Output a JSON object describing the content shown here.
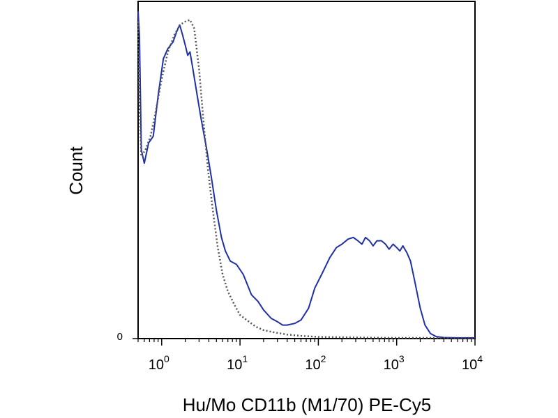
{
  "chart_data": {
    "type": "line",
    "xlabel": "Hu/Mo CD11b (M1/70) PE-Cy5",
    "ylabel": "Count",
    "x_scale": "log",
    "xlim": [
      0.5,
      10000
    ],
    "x_ticks": [
      {
        "value": 1,
        "base": "10",
        "exp": "0"
      },
      {
        "value": 10,
        "base": "10",
        "exp": "1"
      },
      {
        "value": 100,
        "base": "10",
        "exp": "2"
      },
      {
        "value": 1000,
        "base": "10",
        "exp": "3"
      },
      {
        "value": 10000,
        "base": "10",
        "exp": "4"
      }
    ],
    "y_ticks": [
      {
        "value": 0,
        "label": "0"
      }
    ],
    "ylim": [
      0,
      100
    ],
    "grid": false,
    "series": [
      {
        "style": "solid",
        "color": "#1f2fa8",
        "points": [
          [
            0.5,
            97
          ],
          [
            0.52,
            90
          ],
          [
            0.55,
            56
          ],
          [
            0.6,
            52
          ],
          [
            0.68,
            58
          ],
          [
            0.78,
            60
          ],
          [
            0.9,
            72
          ],
          [
            1.05,
            83
          ],
          [
            1.2,
            86
          ],
          [
            1.4,
            88
          ],
          [
            1.55,
            91
          ],
          [
            1.7,
            93
          ],
          [
            1.85,
            90
          ],
          [
            2.0,
            87
          ],
          [
            2.15,
            84
          ],
          [
            2.3,
            85
          ],
          [
            2.5,
            80
          ],
          [
            2.8,
            73
          ],
          [
            3.2,
            65
          ],
          [
            3.7,
            57
          ],
          [
            4.3,
            48
          ],
          [
            5.0,
            38
          ],
          [
            5.8,
            30
          ],
          [
            6.5,
            26
          ],
          [
            7.5,
            23
          ],
          [
            9,
            22
          ],
          [
            11,
            19
          ],
          [
            14,
            13
          ],
          [
            17,
            11
          ],
          [
            20,
            8.5
          ],
          [
            25,
            6
          ],
          [
            30,
            5
          ],
          [
            35,
            4
          ],
          [
            40,
            4
          ],
          [
            50,
            4.5
          ],
          [
            60,
            5.5
          ],
          [
            75,
            9
          ],
          [
            90,
            15
          ],
          [
            110,
            19
          ],
          [
            140,
            24
          ],
          [
            170,
            27
          ],
          [
            200,
            28
          ],
          [
            240,
            29.5
          ],
          [
            280,
            30
          ],
          [
            320,
            29
          ],
          [
            360,
            28
          ],
          [
            400,
            30
          ],
          [
            450,
            29
          ],
          [
            500,
            27.5
          ],
          [
            560,
            29
          ],
          [
            640,
            29
          ],
          [
            720,
            28
          ],
          [
            800,
            26.5
          ],
          [
            900,
            28
          ],
          [
            1000,
            27
          ],
          [
            1100,
            26
          ],
          [
            1200,
            27.5
          ],
          [
            1350,
            25.5
          ],
          [
            1500,
            23
          ],
          [
            1700,
            17
          ],
          [
            2000,
            9
          ],
          [
            2300,
            4
          ],
          [
            2700,
            1.5
          ],
          [
            3200,
            0.6
          ],
          [
            4000,
            0.3
          ],
          [
            6000,
            0.2
          ],
          [
            10000,
            0.2
          ]
        ]
      },
      {
        "style": "dotted",
        "color": "#555555",
        "points": [
          [
            0.5,
            94
          ],
          [
            0.52,
            70
          ],
          [
            0.55,
            54
          ],
          [
            0.62,
            56
          ],
          [
            0.72,
            60
          ],
          [
            0.85,
            68
          ],
          [
            1.0,
            77
          ],
          [
            1.2,
            85
          ],
          [
            1.45,
            90
          ],
          [
            1.7,
            93
          ],
          [
            2.0,
            94
          ],
          [
            2.3,
            94.5
          ],
          [
            2.6,
            92
          ],
          [
            3.0,
            80
          ],
          [
            3.4,
            65
          ],
          [
            3.9,
            50
          ],
          [
            4.5,
            38
          ],
          [
            5.2,
            27
          ],
          [
            6.0,
            19
          ],
          [
            7.0,
            14
          ],
          [
            8.5,
            10
          ],
          [
            10,
            7
          ],
          [
            13,
            5
          ],
          [
            16,
            3.5
          ],
          [
            20,
            2.5
          ],
          [
            28,
            1.8
          ],
          [
            40,
            1.2
          ],
          [
            60,
            0.8
          ],
          [
            100,
            0.5
          ],
          [
            300,
            0.3
          ],
          [
            1000,
            0.2
          ],
          [
            10000,
            0.2
          ]
        ]
      }
    ]
  }
}
